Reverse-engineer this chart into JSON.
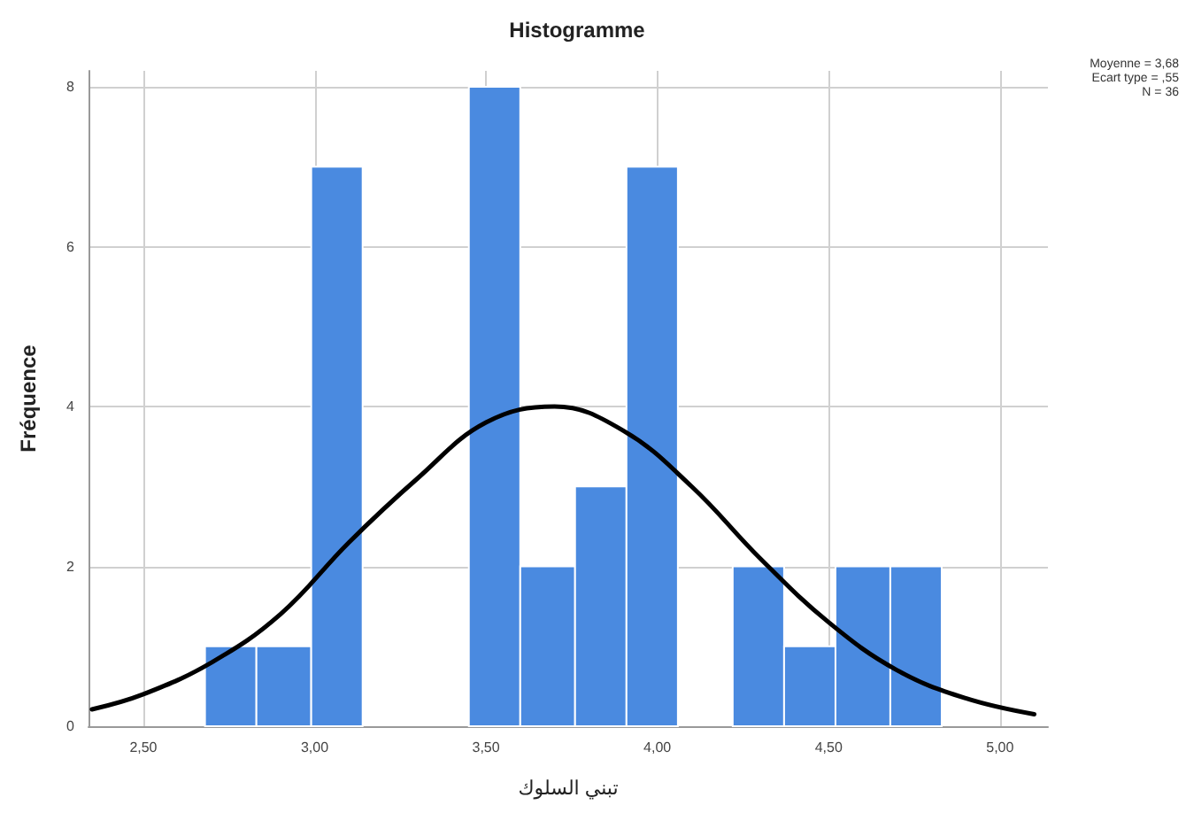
{
  "chart_data": {
    "type": "histogram",
    "title": "Histogramme",
    "xlabel": "تبني السلوك",
    "ylabel": "Fréquence",
    "bins": [
      2.68,
      2.83,
      2.99,
      3.14,
      3.45,
      3.6,
      3.76,
      3.91,
      4.06,
      4.22,
      4.37,
      4.52,
      4.68,
      4.83
    ],
    "series": [
      {
        "color": "#4a8ae0",
        "values": [
          1,
          1,
          7,
          0,
          8,
          2,
          3,
          7,
          0,
          2,
          1,
          2,
          2
        ]
      },
      {
        "type": "line",
        "color": "#000000",
        "x": [
          2.35,
          2.5,
          2.7,
          2.9,
          3.1,
          3.3,
          3.5,
          3.7,
          3.9,
          4.1,
          4.3,
          4.5,
          4.7,
          4.9,
          5.1
        ],
        "values": [
          0.21,
          0.4,
          0.8,
          1.4,
          2.3,
          3.1,
          3.8,
          4.0,
          3.7,
          3.0,
          2.1,
          1.3,
          0.7,
          0.35,
          0.15
        ]
      }
    ],
    "marker": "none",
    "line_style": "solid",
    "xlim": [
      2.34,
      5.14
    ],
    "xticks": [
      {
        "value": 2.5,
        "label": "2,50"
      },
      {
        "value": 3,
        "label": "3,00"
      },
      {
        "value": 3.5,
        "label": "3,50"
      },
      {
        "value": 4,
        "label": "4,00"
      },
      {
        "value": 4.5,
        "label": "4,50"
      },
      {
        "value": 5,
        "label": "5,00"
      }
    ],
    "ylim": [
      0,
      8.2
    ],
    "yticks": [
      0,
      2,
      4,
      6,
      8
    ],
    "grid": true,
    "annotations": [
      "Moyenne = 3,68",
      "Ecart type = ,55",
      "N = 36"
    ]
  }
}
